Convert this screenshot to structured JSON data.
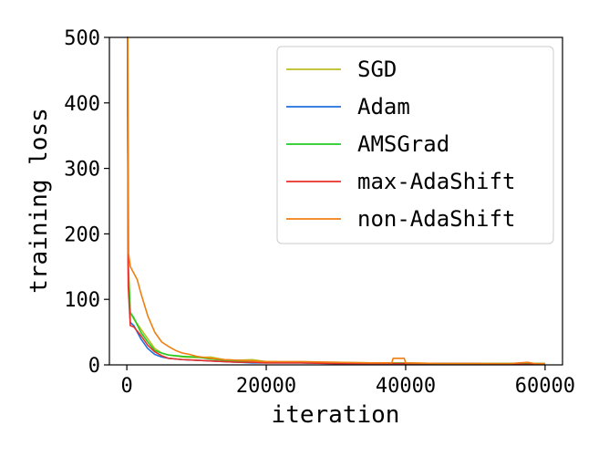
{
  "chart_data": {
    "type": "line",
    "title": "",
    "xlabel": "iteration",
    "ylabel": "training loss",
    "xlim": [
      -2500,
      62500
    ],
    "ylim": [
      0,
      500
    ],
    "xticks": [
      0,
      20000,
      40000,
      60000
    ],
    "yticks": [
      0,
      100,
      200,
      300,
      400,
      500
    ],
    "xtick_labels": [
      "0",
      "20000",
      "40000",
      "60000"
    ],
    "ytick_labels": [
      "0",
      "100",
      "200",
      "300",
      "400",
      "500"
    ],
    "grid": false,
    "legend_position": "top-right",
    "series": [
      {
        "name": "SGD",
        "color": "#bcbd22",
        "points": [
          [
            0,
            500
          ],
          [
            100,
            500
          ],
          [
            200,
            160
          ],
          [
            500,
            80
          ],
          [
            1000,
            70
          ],
          [
            2000,
            55
          ],
          [
            3000,
            40
          ],
          [
            4000,
            25
          ],
          [
            5000,
            18
          ],
          [
            6000,
            15
          ],
          [
            8000,
            12
          ],
          [
            10000,
            11
          ],
          [
            12000,
            12
          ],
          [
            14000,
            8
          ],
          [
            16000,
            7
          ],
          [
            18000,
            8
          ],
          [
            20000,
            5
          ],
          [
            25000,
            4
          ],
          [
            30000,
            4
          ],
          [
            35000,
            3
          ],
          [
            40000,
            3
          ],
          [
            45000,
            2
          ],
          [
            50000,
            2
          ],
          [
            55000,
            2
          ],
          [
            60000,
            2
          ]
        ]
      },
      {
        "name": "Adam",
        "color": "#1f6fdc",
        "points": [
          [
            0,
            500
          ],
          [
            100,
            500
          ],
          [
            200,
            140
          ],
          [
            500,
            65
          ],
          [
            1000,
            60
          ],
          [
            2000,
            40
          ],
          [
            3000,
            25
          ],
          [
            4000,
            16
          ],
          [
            5000,
            12
          ],
          [
            6000,
            10
          ],
          [
            8000,
            8
          ],
          [
            10000,
            7
          ],
          [
            12000,
            6
          ],
          [
            14000,
            5
          ],
          [
            16000,
            4
          ],
          [
            18000,
            3
          ],
          [
            20000,
            3
          ],
          [
            25000,
            3
          ],
          [
            30000,
            2
          ],
          [
            35000,
            2
          ],
          [
            40000,
            2
          ],
          [
            45000,
            2
          ],
          [
            50000,
            1
          ],
          [
            55000,
            1
          ],
          [
            60000,
            1
          ]
        ]
      },
      {
        "name": "AMSGrad",
        "color": "#22cc22",
        "points": [
          [
            0,
            500
          ],
          [
            100,
            500
          ],
          [
            200,
            150
          ],
          [
            500,
            80
          ],
          [
            1000,
            72
          ],
          [
            2000,
            50
          ],
          [
            3000,
            35
          ],
          [
            4000,
            22
          ],
          [
            5000,
            18
          ],
          [
            6000,
            15
          ],
          [
            8000,
            13
          ],
          [
            10000,
            12
          ],
          [
            12000,
            9
          ],
          [
            14000,
            7
          ],
          [
            16000,
            6
          ],
          [
            18000,
            5
          ],
          [
            20000,
            4
          ],
          [
            25000,
            4
          ],
          [
            30000,
            3
          ],
          [
            35000,
            3
          ],
          [
            40000,
            2
          ],
          [
            45000,
            2
          ],
          [
            50000,
            2
          ],
          [
            55000,
            2
          ],
          [
            60000,
            2
          ]
        ]
      },
      {
        "name": "max-AdaShift",
        "color": "#e8302a",
        "points": [
          [
            0,
            500
          ],
          [
            100,
            500
          ],
          [
            200,
            120
          ],
          [
            500,
            60
          ],
          [
            1000,
            58
          ],
          [
            2000,
            45
          ],
          [
            3000,
            30
          ],
          [
            4000,
            20
          ],
          [
            5000,
            14
          ],
          [
            6000,
            10
          ],
          [
            8000,
            8
          ],
          [
            10000,
            7
          ],
          [
            12000,
            6
          ],
          [
            14000,
            5
          ],
          [
            16000,
            4
          ],
          [
            18000,
            4
          ],
          [
            20000,
            3
          ],
          [
            25000,
            3
          ],
          [
            30000,
            2
          ],
          [
            35000,
            2
          ],
          [
            40000,
            2
          ],
          [
            45000,
            2
          ],
          [
            50000,
            2
          ],
          [
            55000,
            1
          ],
          [
            60000,
            1
          ]
        ]
      },
      {
        "name": "non-AdaShift",
        "color": "#f07f12",
        "points": [
          [
            0,
            500
          ],
          [
            150,
            500
          ],
          [
            250,
            170
          ],
          [
            500,
            150
          ],
          [
            1000,
            140
          ],
          [
            1500,
            130
          ],
          [
            2000,
            110
          ],
          [
            3000,
            75
          ],
          [
            4000,
            50
          ],
          [
            5000,
            35
          ],
          [
            6000,
            28
          ],
          [
            7000,
            22
          ],
          [
            8000,
            18
          ],
          [
            9000,
            16
          ],
          [
            10000,
            13
          ],
          [
            12000,
            10
          ],
          [
            14000,
            8
          ],
          [
            16000,
            7
          ],
          [
            18000,
            6
          ],
          [
            20000,
            5
          ],
          [
            25000,
            5
          ],
          [
            30000,
            4
          ],
          [
            35000,
            3
          ],
          [
            38000,
            3
          ],
          [
            38200,
            10
          ],
          [
            39800,
            10
          ],
          [
            40000,
            3
          ],
          [
            45000,
            2
          ],
          [
            50000,
            2
          ],
          [
            55000,
            2
          ],
          [
            57500,
            4
          ],
          [
            58500,
            2
          ],
          [
            60000,
            2
          ]
        ]
      }
    ]
  }
}
